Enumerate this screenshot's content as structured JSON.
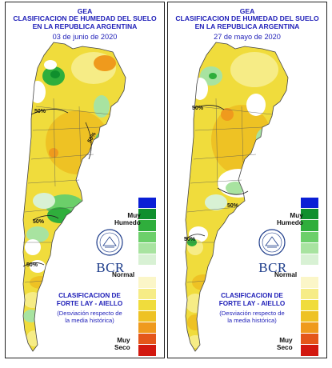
{
  "panels": [
    {
      "title_line1": "GEA",
      "title_line2": "CLASIFICACION DE HUMEDAD DEL SUELO",
      "title_line3": "EN LA REPUBLICA ARGENTINA",
      "date": "03 de junio de 2020",
      "isolines": [
        "50%",
        "50%",
        "50%",
        "50%"
      ],
      "legend_top": "Muy\nHumedo",
      "legend_mid": "Normal",
      "legend_bottom": "Muy\nSeco",
      "logo_text": "BCR",
      "classification_title": "CLASIFICACION DE\nFORTE LAY - AIELLO",
      "classification_note": "(Desviación respecto de\nla media histórica)"
    },
    {
      "title_line1": "GEA",
      "title_line2": "CLASIFICACION DE HUMEDAD DEL SUELO",
      "title_line3": "EN LA REPUBLICA ARGENTINA",
      "date": "27 de mayo de 2020",
      "isolines": [
        "50%",
        "50%",
        "50%"
      ],
      "legend_top": "Muy\nHumedo",
      "legend_mid": "Normal",
      "legend_bottom": "Muy\nSeco",
      "logo_text": "BCR",
      "classification_title": "CLASIFICACION DE\nFORTE LAY - AIELLO",
      "classification_note": "(Desviación respecto de\nla media histórica)"
    }
  ],
  "legend_colors": [
    "#0a1fd6",
    "#0f8f2d",
    "#2fae3c",
    "#6ccf6a",
    "#a8e3a0",
    "#d8f1d4",
    "#ffffff",
    "#fbf6c8",
    "#f6ec86",
    "#f0dc3c",
    "#eec224",
    "#ef9a1d",
    "#e4561a",
    "#d2180f"
  ]
}
